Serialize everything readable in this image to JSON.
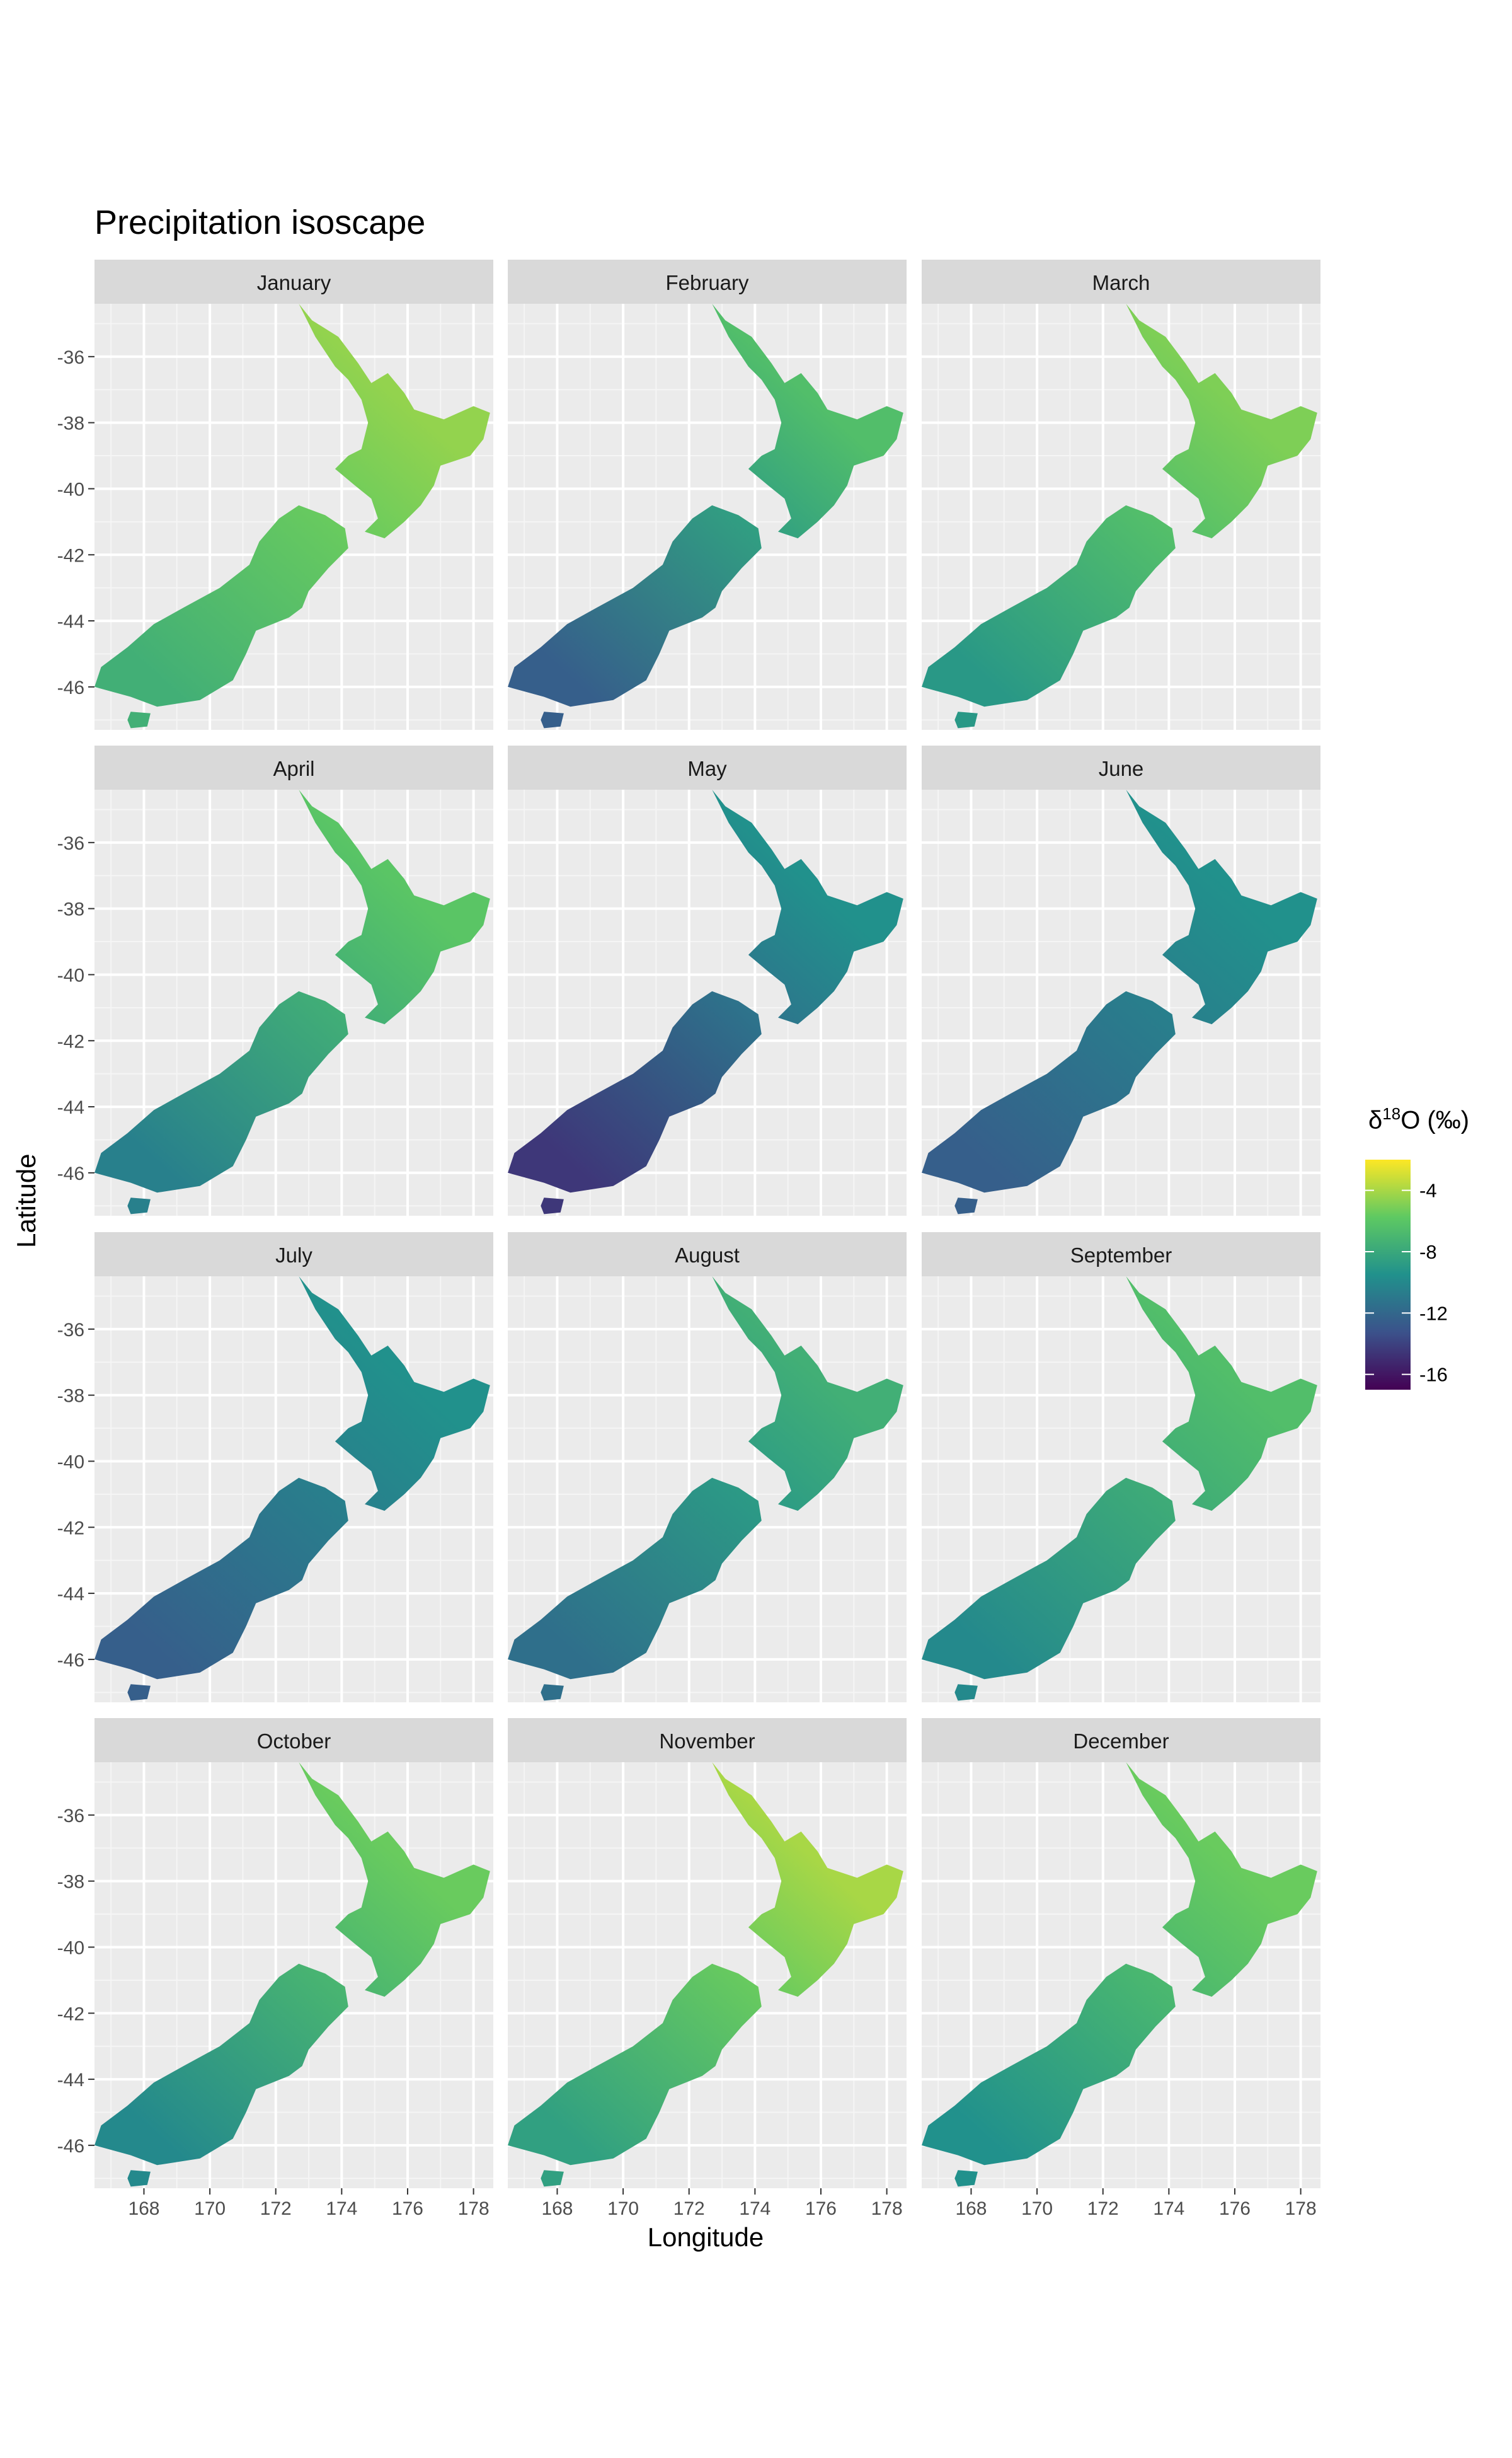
{
  "figure": {
    "title": "Precipitation isoscape",
    "xlabel": "Longitude",
    "ylabel": "Latitude",
    "legend": {
      "title_prefix": "δ",
      "title_sup": "18",
      "title_suffix": "O (‰)",
      "ticks": [
        -4,
        -8,
        -12,
        -16
      ],
      "range": [
        -17,
        -2
      ],
      "colors": [
        "#440154",
        "#3b528b",
        "#21918c",
        "#5ec962",
        "#fde725"
      ]
    },
    "x_ticks": [
      168,
      170,
      172,
      174,
      176,
      178
    ],
    "y_ticks": [
      -36,
      -38,
      -40,
      -42,
      -44,
      -46
    ],
    "xlim": [
      166.5,
      178.6
    ],
    "ylim": [
      -47.3,
      -34.4
    ]
  },
  "chart_data": {
    "type": "heatmap",
    "facets": [
      {
        "label": "January",
        "north": -4.5,
        "south": -7.5
      },
      {
        "label": "February",
        "north": -6.5,
        "south": -12.5
      },
      {
        "label": "March",
        "north": -5.0,
        "south": -9.0
      },
      {
        "label": "April",
        "north": -6.0,
        "south": -10.5
      },
      {
        "label": "May",
        "north": -9.5,
        "south": -14.5
      },
      {
        "label": "June",
        "north": -9.5,
        "south": -12.5
      },
      {
        "label": "July",
        "north": -9.5,
        "south": -12.5
      },
      {
        "label": "August",
        "north": -7.5,
        "south": -11.5
      },
      {
        "label": "September",
        "north": -6.5,
        "south": -10.0
      },
      {
        "label": "October",
        "north": -5.5,
        "south": -10.0
      },
      {
        "label": "November",
        "north": -4.0,
        "south": -8.5
      },
      {
        "label": "December",
        "north": -5.5,
        "south": -9.5
      }
    ]
  }
}
